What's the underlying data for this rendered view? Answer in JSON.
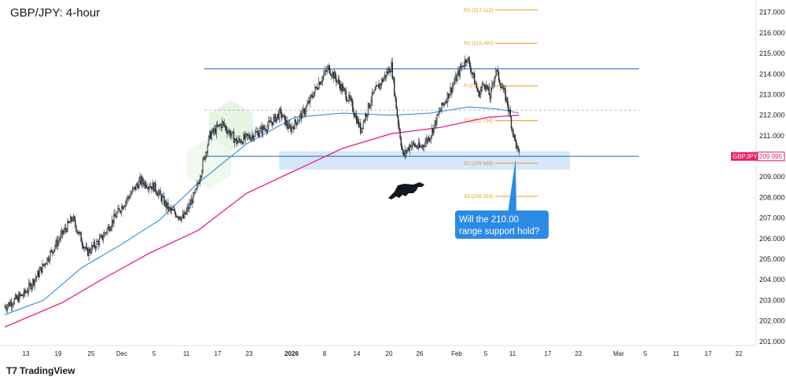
{
  "chart_data": {
    "type": "candlestick",
    "title": "GBP/JPY: 4-hour",
    "symbol": "GBPJPY",
    "last_price": "209.995",
    "y_range": [
      200.8,
      217.6
    ],
    "y_ticks": [
      "201.000",
      "202.000",
      "203.000",
      "204.000",
      "205.000",
      "206.000",
      "207.000",
      "208.000",
      "209.000",
      "210.000",
      "211.000",
      "212.000",
      "213.000",
      "214.000",
      "215.000",
      "216.000",
      "217.000"
    ],
    "x_ticks": [
      {
        "label": "13",
        "bold": false
      },
      {
        "label": "19",
        "bold": false
      },
      {
        "label": "25",
        "bold": false
      },
      {
        "label": "Dec",
        "bold": false
      },
      {
        "label": "5",
        "bold": false
      },
      {
        "label": "11",
        "bold": false
      },
      {
        "label": "17",
        "bold": false
      },
      {
        "label": "23",
        "bold": false
      },
      {
        "label": "2026",
        "bold": true
      },
      {
        "label": "8",
        "bold": false
      },
      {
        "label": "14",
        "bold": false
      },
      {
        "label": "20",
        "bold": false
      },
      {
        "label": "26",
        "bold": false
      },
      {
        "label": "Feb",
        "bold": false
      },
      {
        "label": "5",
        "bold": false
      },
      {
        "label": "11",
        "bold": false
      },
      {
        "label": "17",
        "bold": false
      },
      {
        "label": "22",
        "bold": false
      },
      {
        "label": "Mar",
        "bold": false
      },
      {
        "label": "5",
        "bold": false
      },
      {
        "label": "11",
        "bold": false
      },
      {
        "label": "17",
        "bold": false
      },
      {
        "label": "22",
        "bold": false
      }
    ],
    "price_anchors": [
      [
        0,
        202.7
      ],
      [
        20,
        203.3
      ],
      [
        35,
        204.3
      ],
      [
        50,
        205.5
      ],
      [
        70,
        207.0
      ],
      [
        85,
        205.3
      ],
      [
        100,
        206.0
      ],
      [
        120,
        207.5
      ],
      [
        140,
        208.8
      ],
      [
        155,
        208.5
      ],
      [
        170,
        207.4
      ],
      [
        185,
        207.0
      ],
      [
        198,
        208.3
      ],
      [
        212,
        211.0
      ],
      [
        225,
        211.6
      ],
      [
        240,
        210.7
      ],
      [
        255,
        211.0
      ],
      [
        270,
        211.4
      ],
      [
        285,
        212.1
      ],
      [
        295,
        211.3
      ],
      [
        310,
        212.2
      ],
      [
        325,
        213.6
      ],
      [
        335,
        214.3
      ],
      [
        345,
        213.6
      ],
      [
        358,
        212.6
      ],
      [
        368,
        211.3
      ],
      [
        380,
        212.9
      ],
      [
        392,
        213.8
      ],
      [
        400,
        214.4
      ],
      [
        406,
        212.0
      ],
      [
        412,
        210.0
      ],
      [
        420,
        210.6
      ],
      [
        430,
        210.4
      ],
      [
        440,
        211.0
      ],
      [
        450,
        212.2
      ],
      [
        462,
        213.3
      ],
      [
        472,
        214.3
      ],
      [
        478,
        214.8
      ],
      [
        484,
        214.0
      ],
      [
        490,
        213.0
      ],
      [
        496,
        213.6
      ],
      [
        502,
        212.9
      ],
      [
        508,
        214.2
      ],
      [
        514,
        213.4
      ],
      [
        520,
        212.6
      ],
      [
        526,
        211.1
      ],
      [
        532,
        210.0
      ]
    ],
    "sma_200": [
      [
        0,
        201.7
      ],
      [
        60,
        202.9
      ],
      [
        100,
        204.0
      ],
      [
        150,
        205.3
      ],
      [
        200,
        206.4
      ],
      [
        250,
        208.2
      ],
      [
        300,
        209.3
      ],
      [
        350,
        210.4
      ],
      [
        400,
        211.1
      ],
      [
        450,
        211.4
      ],
      [
        500,
        211.9
      ],
      [
        532,
        212.0
      ]
    ],
    "sma_100": [
      [
        0,
        202.3
      ],
      [
        40,
        203.0
      ],
      [
        80,
        204.6
      ],
      [
        120,
        205.7
      ],
      [
        160,
        206.9
      ],
      [
        200,
        208.7
      ],
      [
        250,
        210.6
      ],
      [
        300,
        211.9
      ],
      [
        350,
        212.1
      ],
      [
        400,
        212.0
      ],
      [
        440,
        212.1
      ],
      [
        480,
        212.4
      ],
      [
        510,
        212.3
      ],
      [
        532,
        212.1
      ]
    ],
    "levels": {
      "resistance": 214.25,
      "support": 210.0,
      "midline": 212.25
    },
    "pivots": [
      {
        "label": "R2 (217.112)",
        "value": 217.112
      },
      {
        "label": "R1 (215.497)",
        "value": 215.497
      },
      {
        "label": "P (213.430)",
        "value": 213.43
      },
      {
        "label": "S1 (211.734)",
        "value": 211.734
      },
      {
        "label": "S2 (209.666)",
        "value": 209.666
      },
      {
        "label": "S3 (208.053)",
        "value": 208.053
      }
    ],
    "annotation": {
      "line1": "Will the 210.00",
      "line2": "range support hold?"
    },
    "footer": {
      "brand": "TradingView"
    },
    "colors": {
      "up": "#26a69a",
      "down": "#ef5350",
      "candle": "#22262e",
      "sma_fast": "#2f8de4",
      "sma_slow": "#ec1c8c",
      "level_line": "#1f5fbf",
      "support_zone": "#cfe4f8",
      "pivot": "#f0941e",
      "callout": "#2b8ae6",
      "price_tag": "#e91e63"
    }
  }
}
